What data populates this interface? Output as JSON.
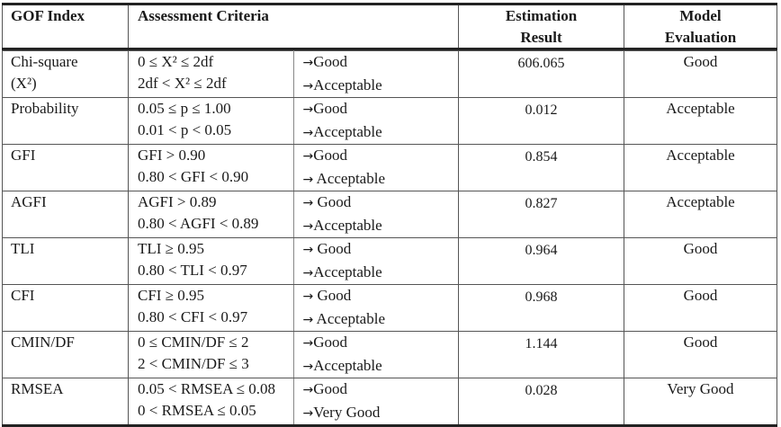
{
  "header": {
    "gof_index": "GOF Index",
    "assessment_criteria": "Assessment Criteria",
    "estimation_result": [
      "Estimation",
      "Result"
    ],
    "model_evaluation": [
      "Model",
      "Evaluation"
    ]
  },
  "arrow_glyph": "→",
  "rows": [
    {
      "index": [
        "Chi-square",
        "(X²)"
      ],
      "criteria": [
        "0 ≤ X² ≤ 2df",
        "2df < X² ≤ 2df"
      ],
      "labels": [
        "Good",
        "Acceptable"
      ],
      "result": "606.065",
      "evaluation": "Good"
    },
    {
      "index": [
        "Probability"
      ],
      "criteria": [
        "0.05 ≤ p ≤ 1.00",
        "0.01 < p < 0.05"
      ],
      "labels": [
        "Good",
        "Acceptable"
      ],
      "result": "0.012",
      "evaluation": "Acceptable"
    },
    {
      "index": [
        "GFI"
      ],
      "criteria": [
        "GFI > 0.90",
        "0.80 < GFI < 0.90"
      ],
      "labels": [
        "Good",
        " Acceptable"
      ],
      "result": "0.854",
      "evaluation": "Acceptable"
    },
    {
      "index": [
        "AGFI"
      ],
      "criteria": [
        "AGFI > 0.89",
        "0.80 < AGFI < 0.89"
      ],
      "labels": [
        " Good",
        "Acceptable"
      ],
      "result": "0.827",
      "evaluation": "Acceptable"
    },
    {
      "index": [
        "TLI"
      ],
      "criteria": [
        "TLI ≥ 0.95",
        "0.80 < TLI < 0.97"
      ],
      "labels": [
        " Good",
        "Acceptable"
      ],
      "result": "0.964",
      "evaluation": "Good"
    },
    {
      "index": [
        "CFI"
      ],
      "criteria": [
        "CFI ≥ 0.95",
        "0.80 < CFI < 0.97"
      ],
      "labels": [
        " Good",
        " Acceptable"
      ],
      "result": "0.968",
      "evaluation": "Good"
    },
    {
      "index": [
        "CMIN/DF"
      ],
      "criteria": [
        "0 ≤ CMIN/DF ≤ 2",
        "2 < CMIN/DF ≤ 3"
      ],
      "labels": [
        "Good",
        "Acceptable"
      ],
      "result": "1.144",
      "evaluation": "Good"
    },
    {
      "index": [
        "RMSEA"
      ],
      "criteria": [
        "0.05 < RMSEA ≤ 0.08",
        "0 < RMSEA ≤ 0.05"
      ],
      "labels": [
        "Good",
        "Very Good"
      ],
      "result": "0.028",
      "evaluation": "Very Good"
    }
  ]
}
